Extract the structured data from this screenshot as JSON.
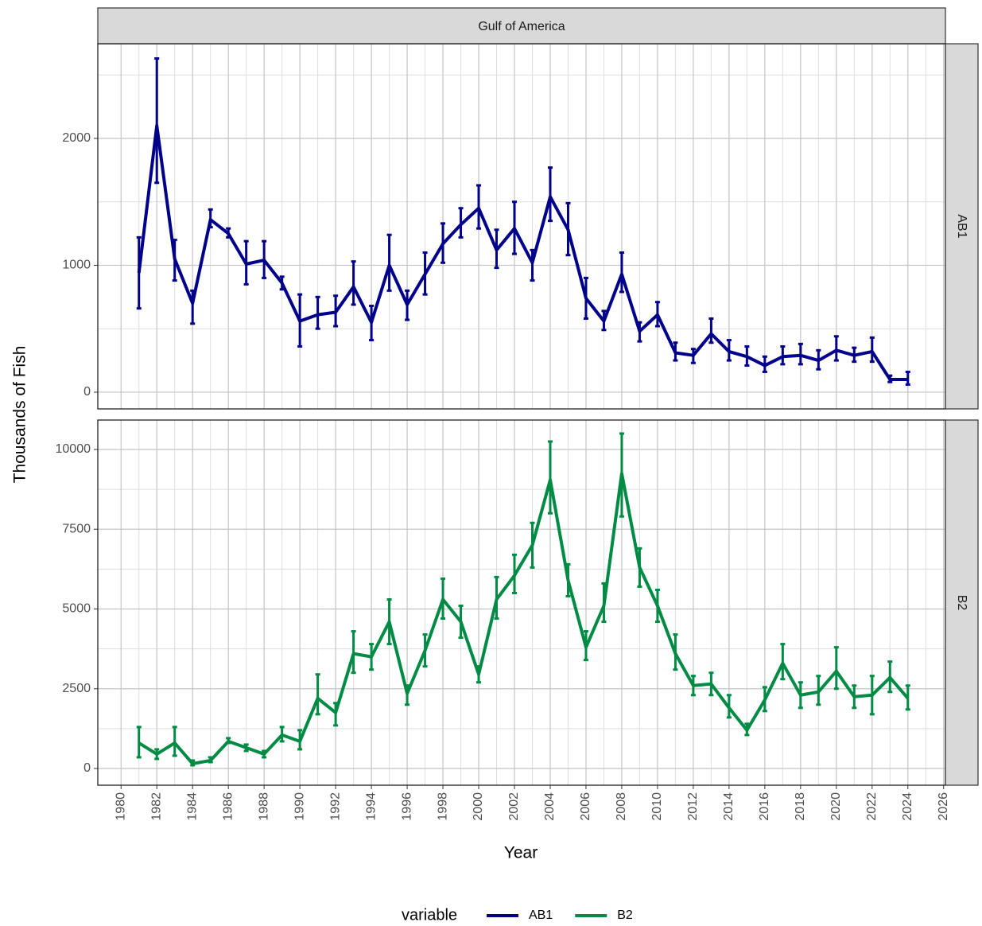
{
  "chart_data": {
    "type": "line",
    "title": "Gulf of America",
    "xlabel": "Year",
    "ylabel": "Thousands of Fish",
    "legend_title": "variable",
    "legend": "bottom",
    "grid": true,
    "xlim": [
      1978.7,
      2026.1
    ],
    "xticks": [
      1980,
      1982,
      1984,
      1986,
      1988,
      1990,
      1992,
      1994,
      1996,
      1998,
      2000,
      2002,
      2004,
      2006,
      2008,
      2010,
      2012,
      2014,
      2016,
      2018,
      2020,
      2022,
      2024,
      2026
    ],
    "x": [
      1981,
      1982,
      1983,
      1984,
      1985,
      1986,
      1987,
      1988,
      1989,
      1990,
      1991,
      1992,
      1993,
      1994,
      1995,
      1996,
      1997,
      1998,
      1999,
      2000,
      2001,
      2002,
      2003,
      2004,
      2005,
      2006,
      2007,
      2008,
      2009,
      2010,
      2011,
      2012,
      2013,
      2014,
      2015,
      2016,
      2017,
      2018,
      2019,
      2020,
      2021,
      2022,
      2023,
      2024
    ],
    "series": [
      {
        "name": "AB1",
        "color": "#00008b",
        "ylim": [
          -132,
          2746
        ],
        "yticks": [
          0,
          1000,
          2000
        ],
        "values": [
          940,
          2100,
          1050,
          700,
          1360,
          1250,
          1010,
          1040,
          860,
          560,
          610,
          630,
          830,
          550,
          1000,
          690,
          930,
          1170,
          1320,
          1450,
          1120,
          1290,
          1020,
          1540,
          1280,
          740,
          560,
          930,
          480,
          610,
          310,
          290,
          460,
          320,
          280,
          210,
          280,
          290,
          250,
          330,
          290,
          320,
          100,
          100
        ],
        "lower": [
          660,
          1650,
          880,
          540,
          1300,
          1220,
          850,
          900,
          810,
          360,
          500,
          520,
          690,
          410,
          800,
          570,
          770,
          1020,
          1220,
          1290,
          980,
          1090,
          880,
          1350,
          1080,
          580,
          490,
          790,
          400,
          520,
          250,
          230,
          390,
          250,
          210,
          160,
          220,
          220,
          180,
          250,
          240,
          240,
          80,
          60
        ],
        "upper": [
          1220,
          2630,
          1200,
          800,
          1440,
          1290,
          1190,
          1190,
          910,
          770,
          750,
          760,
          1030,
          680,
          1240,
          800,
          1100,
          1330,
          1450,
          1630,
          1280,
          1500,
          1120,
          1770,
          1490,
          900,
          640,
          1100,
          550,
          710,
          390,
          340,
          580,
          410,
          360,
          280,
          360,
          380,
          330,
          440,
          350,
          430,
          130,
          160
        ]
      },
      {
        "name": "B2",
        "color": "#008b45",
        "ylim": [
          -524,
          10923
        ],
        "yticks": [
          0,
          2500,
          5000,
          7500,
          10000
        ],
        "values": [
          800,
          450,
          800,
          150,
          250,
          850,
          650,
          450,
          1050,
          850,
          2200,
          1750,
          3600,
          3500,
          4600,
          2350,
          3700,
          5300,
          4600,
          2950,
          5300,
          6050,
          7000,
          9050,
          5900,
          3800,
          5100,
          9250,
          6300,
          5100,
          3600,
          2600,
          2650,
          1900,
          1200,
          2150,
          3300,
          2300,
          2400,
          3050,
          2250,
          2300,
          2850,
          2200
        ],
        "lower": [
          350,
          300,
          400,
          100,
          200,
          800,
          550,
          350,
          850,
          600,
          1700,
          1350,
          3000,
          3100,
          3900,
          2000,
          3200,
          4700,
          4100,
          2700,
          4700,
          5500,
          6300,
          8000,
          5400,
          3400,
          4600,
          7900,
          5700,
          4600,
          3100,
          2300,
          2300,
          1600,
          1050,
          1800,
          2800,
          1900,
          2000,
          2500,
          1900,
          1700,
          2400,
          1850
        ],
        "upper": [
          1300,
          600,
          1300,
          250,
          350,
          950,
          750,
          550,
          1300,
          1200,
          2950,
          2050,
          4300,
          3900,
          5300,
          2600,
          4200,
          5950,
          5100,
          3200,
          6000,
          6700,
          7700,
          10250,
          6400,
          4300,
          5800,
          10500,
          6900,
          5600,
          4200,
          2900,
          3000,
          2300,
          1400,
          2550,
          3900,
          2700,
          2900,
          3800,
          2600,
          2900,
          3350,
          2600
        ]
      }
    ]
  }
}
